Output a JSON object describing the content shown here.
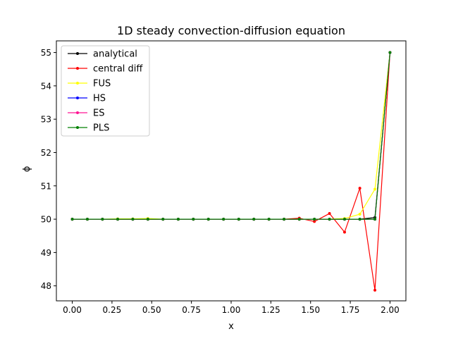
{
  "chart_data": {
    "type": "line",
    "title": "1D steady convection-diffusion equation",
    "xlabel": "x",
    "ylabel": "ϕ",
    "xlim": [
      -0.1,
      2.1
    ],
    "ylim": [
      47.55,
      55.35
    ],
    "xticks": [
      0.0,
      0.25,
      0.5,
      0.75,
      1.0,
      1.25,
      1.5,
      1.75,
      2.0
    ],
    "xtick_labels": [
      "0.00",
      "0.25",
      "0.50",
      "0.75",
      "1.00",
      "1.25",
      "1.50",
      "1.75",
      "2.00"
    ],
    "yticks": [
      48,
      49,
      50,
      51,
      52,
      53,
      54,
      55
    ],
    "ytick_labels": [
      "48",
      "49",
      "50",
      "51",
      "52",
      "53",
      "54",
      "55"
    ],
    "grid": false,
    "legend_position": "top-left",
    "x": [
      0.0,
      0.095,
      0.19,
      0.286,
      0.381,
      0.476,
      0.571,
      0.667,
      0.762,
      0.857,
      0.952,
      1.048,
      1.143,
      1.238,
      1.333,
      1.429,
      1.524,
      1.619,
      1.714,
      1.81,
      1.905,
      2.0
    ],
    "series": [
      {
        "name": "analytical",
        "color": "#000000",
        "values": [
          50,
          50,
          50,
          50,
          50,
          50,
          50,
          50,
          50,
          50,
          50,
          50,
          50,
          50,
          50,
          50,
          50,
          50,
          50,
          50,
          50.05,
          55
        ]
      },
      {
        "name": "central diff",
        "color": "#ff0000",
        "values": [
          50,
          50,
          50,
          50,
          50,
          50,
          50,
          50,
          50,
          50,
          50,
          50,
          50,
          50,
          50,
          50.03,
          49.93,
          50.17,
          49.61,
          50.93,
          47.87,
          55
        ]
      },
      {
        "name": "FUS",
        "color": "#ffff00",
        "values": [
          50,
          50,
          50,
          50.01,
          50.01,
          50.02,
          50,
          50,
          50,
          50,
          50,
          50,
          50,
          50,
          50,
          50,
          50,
          50,
          50.02,
          50.15,
          50.9,
          55
        ]
      },
      {
        "name": "HS",
        "color": "#0000ff",
        "values": [
          50,
          50,
          50,
          50,
          50,
          50,
          50,
          50,
          50,
          50,
          50,
          50,
          50,
          50,
          50,
          50,
          50,
          50,
          50,
          50,
          50,
          55
        ]
      },
      {
        "name": "ES",
        "color": "#ff1493",
        "values": [
          50,
          50,
          50,
          50,
          50,
          50,
          50,
          50,
          50,
          50,
          50,
          50,
          50,
          50,
          50,
          50,
          50,
          50,
          50,
          50,
          50,
          55
        ]
      },
      {
        "name": "PLS",
        "color": "#008000",
        "values": [
          50,
          50,
          50,
          50,
          50,
          50,
          50,
          50,
          50,
          50,
          50,
          50,
          50,
          50,
          50,
          50,
          50,
          50,
          50,
          50,
          50,
          55
        ]
      }
    ]
  }
}
